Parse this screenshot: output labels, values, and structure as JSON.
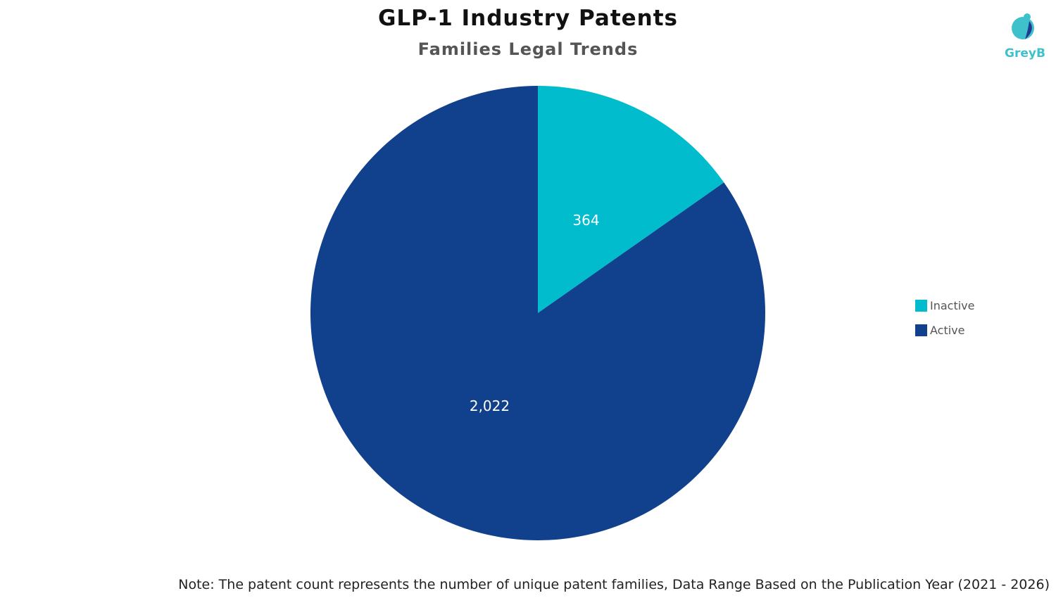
{
  "chart_data": {
    "type": "pie",
    "title": "GLP-1 Industry Patents",
    "subtitle": "Families Legal Trends",
    "categories": [
      "Inactive",
      "Active"
    ],
    "values": [
      364,
      2022
    ],
    "labels": [
      "364",
      "2,022"
    ],
    "colors": [
      "#00bccd",
      "#11408d"
    ],
    "start_angle": "top, clockwise",
    "legend_position": "right"
  },
  "logo": {
    "text": "GreyB"
  },
  "note": "Note: The patent count represents the number of unique patent families, Data Range Based on the Publication Year (2021 - 2026)"
}
